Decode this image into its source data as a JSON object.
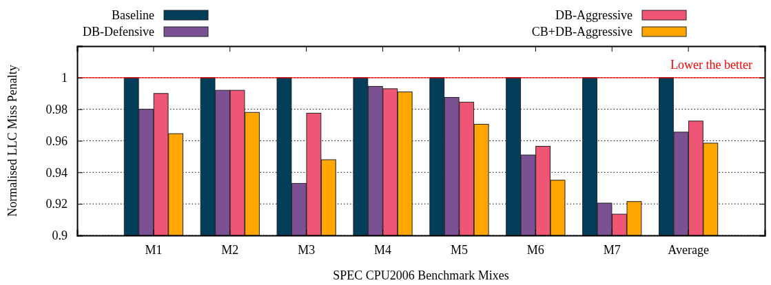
{
  "chart_data": {
    "type": "bar",
    "xlabel": "SPEC CPU2006 Benchmark Mixes",
    "ylabel": "Normalised LLC Miss Penalty",
    "categories": [
      "M1",
      "M2",
      "M3",
      "M4",
      "M5",
      "M6",
      "M7",
      "Average"
    ],
    "series": [
      {
        "name": "Baseline",
        "color": "#023e5a",
        "values": [
          1,
          1,
          1,
          1,
          1,
          1,
          1,
          1
        ]
      },
      {
        "name": "DB-Defensive",
        "color": "#7b5193",
        "values": [
          0.98,
          0.992,
          0.933,
          0.9945,
          0.9875,
          0.951,
          0.9205,
          0.9655
        ]
      },
      {
        "name": "DB-Aggressive",
        "color": "#ef5675",
        "values": [
          0.99,
          0.992,
          0.9775,
          0.993,
          0.9845,
          0.9565,
          0.9135,
          0.9725
        ]
      },
      {
        "name": "CB+DB-Aggressive",
        "color": "#ffa600",
        "values": [
          0.9645,
          0.978,
          0.948,
          0.991,
          0.9705,
          0.935,
          0.9215,
          0.9585
        ]
      }
    ],
    "ylim": [
      0.9,
      1.02
    ],
    "yticks": [
      0.9,
      0.92,
      0.94,
      0.96,
      0.98,
      1
    ],
    "grid": "y",
    "legend": "top",
    "ref_lines": [
      {
        "axis": "y",
        "value": 1,
        "label": "Lower the better",
        "color": "#ff0000"
      }
    ]
  }
}
